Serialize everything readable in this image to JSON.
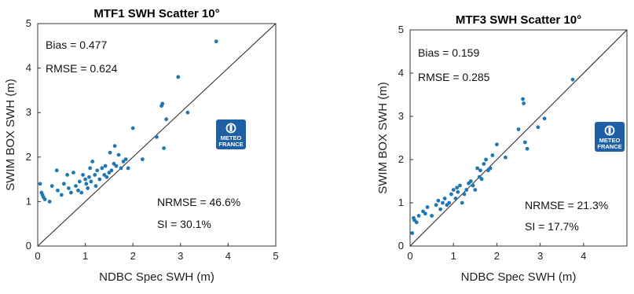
{
  "logo": {
    "line1": "METEO",
    "line2": "FRANCE",
    "color": "#1f5fa6"
  },
  "chart_data": [
    {
      "type": "scatter",
      "title": "MTF1 SWH Scatter 10°",
      "xlabel": "NDBC Spec SWH (m)",
      "ylabel": "SWIM BOX SWH (m)",
      "xlim": [
        0,
        5
      ],
      "ylim": [
        0,
        5
      ],
      "xticks": [
        0,
        1,
        2,
        3,
        4,
        5
      ],
      "yticks": [
        0,
        1,
        2,
        3,
        4,
        5
      ],
      "reference_line": "y = x",
      "marker_color": "#1f77b4",
      "stats": {
        "bias": "Bias = 0.477",
        "rmse": "RMSE = 0.624",
        "nrmse": "NRMSE = 46.6%",
        "si": "SI = 30.1%"
      },
      "x": [
        0.05,
        0.08,
        0.1,
        0.12,
        0.15,
        0.25,
        0.3,
        0.4,
        0.42,
        0.5,
        0.55,
        0.62,
        0.65,
        0.7,
        0.75,
        0.8,
        0.85,
        0.88,
        0.92,
        0.95,
        1.0,
        1.02,
        1.05,
        1.08,
        1.1,
        1.12,
        1.15,
        1.2,
        1.22,
        1.25,
        1.3,
        1.35,
        1.4,
        1.42,
        1.45,
        1.5,
        1.52,
        1.55,
        1.6,
        1.62,
        1.65,
        1.7,
        1.75,
        1.8,
        1.85,
        1.9,
        2.0,
        2.2,
        2.5,
        2.6,
        2.62,
        2.65,
        2.7,
        2.95,
        3.15,
        3.75
      ],
      "y": [
        1.4,
        1.2,
        1.15,
        1.1,
        1.05,
        1.0,
        1.35,
        1.7,
        1.25,
        1.15,
        1.4,
        1.6,
        1.3,
        1.2,
        1.65,
        1.35,
        1.25,
        1.45,
        1.2,
        1.6,
        1.5,
        1.4,
        1.3,
        1.55,
        1.75,
        1.45,
        1.9,
        1.6,
        1.35,
        1.7,
        1.5,
        1.75,
        1.6,
        1.8,
        1.55,
        1.65,
        2.1,
        1.7,
        1.85,
        2.25,
        1.8,
        2.05,
        1.75,
        1.9,
        1.95,
        1.75,
        2.65,
        1.95,
        2.45,
        3.15,
        3.2,
        2.2,
        2.85,
        3.8,
        3.0,
        4.6
      ]
    },
    {
      "type": "scatter",
      "title": "MTF3 SWH Scatter 10°",
      "xlabel": "NDBC Spec SWH (m)",
      "ylabel": "SWIM BOX SWH (m)",
      "xlim": [
        0,
        5
      ],
      "ylim": [
        0,
        5
      ],
      "xticks": [
        0,
        1,
        2,
        3,
        4
      ],
      "yticks": [
        0,
        1,
        2,
        3,
        4,
        5
      ],
      "reference_line": "y = x",
      "marker_color": "#1f77b4",
      "stats": {
        "bias": "Bias = 0.159",
        "rmse": "RMSE = 0.285",
        "nrmse": "NRMSE = 21.3%",
        "si": "SI = 17.7%"
      },
      "x": [
        0.05,
        0.08,
        0.1,
        0.15,
        0.2,
        0.3,
        0.35,
        0.4,
        0.5,
        0.6,
        0.65,
        0.7,
        0.75,
        0.8,
        0.85,
        0.9,
        0.95,
        1.0,
        1.05,
        1.08,
        1.1,
        1.15,
        1.2,
        1.25,
        1.3,
        1.35,
        1.4,
        1.45,
        1.5,
        1.55,
        1.6,
        1.62,
        1.65,
        1.7,
        1.75,
        1.8,
        1.85,
        1.9,
        2.0,
        2.2,
        2.5,
        2.6,
        2.62,
        2.65,
        2.7,
        2.95,
        3.1,
        3.75
      ],
      "y": [
        0.3,
        0.65,
        0.6,
        0.55,
        0.7,
        0.8,
        0.75,
        0.9,
        0.7,
        0.95,
        1.05,
        0.85,
        1.0,
        1.1,
        0.95,
        1.0,
        1.2,
        1.3,
        1.1,
        1.35,
        1.25,
        1.4,
        1.0,
        1.2,
        1.3,
        1.45,
        1.5,
        1.4,
        1.3,
        1.8,
        1.6,
        1.75,
        1.55,
        1.9,
        2.0,
        1.75,
        1.8,
        2.1,
        2.35,
        2.05,
        2.7,
        3.4,
        3.3,
        2.4,
        2.25,
        2.75,
        2.95,
        3.85
      ]
    }
  ]
}
